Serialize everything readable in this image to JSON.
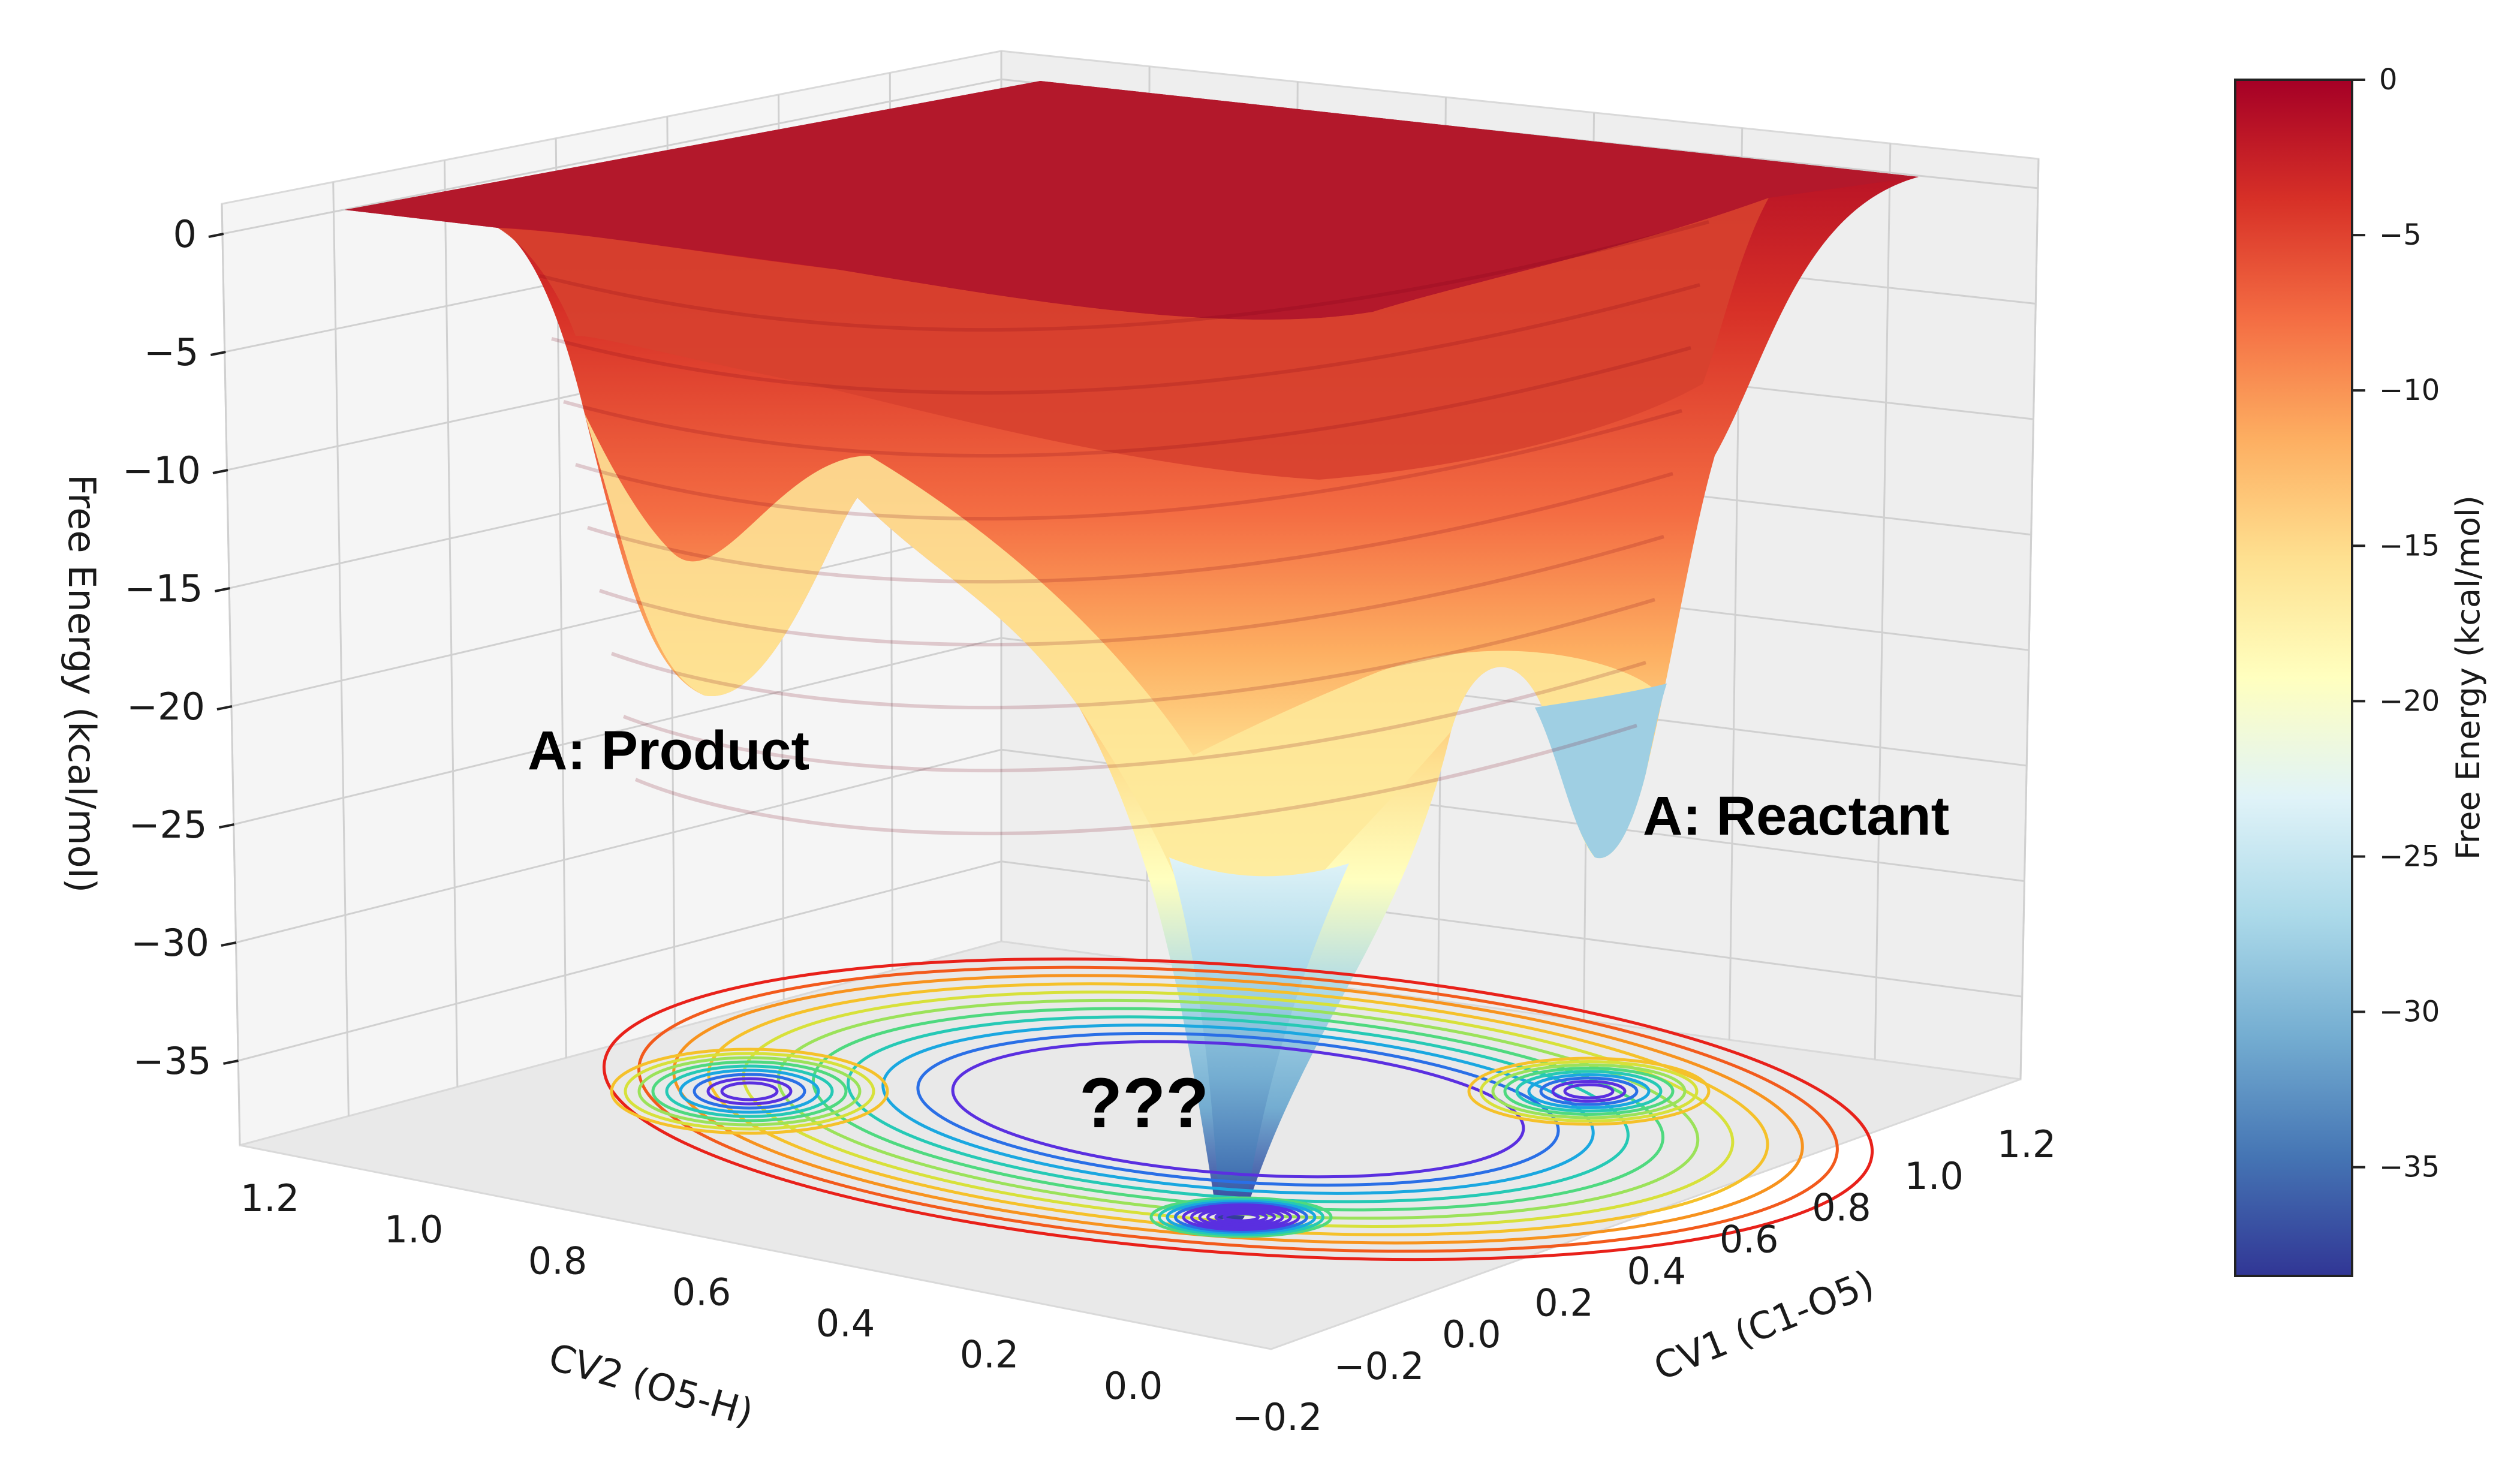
{
  "chart_data": [
    {
      "type": "surface",
      "title": "",
      "axes": {
        "x": {
          "label": "CV1 (C1-O5)",
          "range": [
            -0.2,
            1.2
          ],
          "ticks": [
            "−0.2",
            "0.0",
            "0.2",
            "0.4",
            "0.6",
            "0.8",
            "1.0",
            "1.2"
          ]
        },
        "y": {
          "label": "CV2 (O5-H)",
          "range": [
            -0.2,
            1.2
          ],
          "ticks": [
            "1.2",
            "1.0",
            "0.8",
            "0.6",
            "0.4",
            "0.2",
            "0.0",
            "−0.2"
          ]
        },
        "z": {
          "label": "Free Energy (kcal/mol)",
          "range": [
            -38,
            0
          ],
          "ticks": [
            "0",
            "−5",
            "−10",
            "−15",
            "−20",
            "−25",
            "−30",
            "−35"
          ]
        }
      },
      "grid": true,
      "surface_minima": [
        {
          "name": "A: Product",
          "cv1": 0.0,
          "cv2": 0.9,
          "energy": -20
        },
        {
          "name": "A: Reactant",
          "cv1": 0.9,
          "cv2": 0.05,
          "energy": -27
        },
        {
          "name": "???",
          "cv1": 0.1,
          "cv2": 0.1,
          "energy": -38
        }
      ],
      "annotations": [
        "A: Product",
        "A: Reactant",
        "???"
      ]
    },
    {
      "type": "colorbar",
      "label": "Free Energy (kcal/mol)",
      "range": [
        -38.5,
        0
      ],
      "ticks": [
        "0",
        "−5",
        "−10",
        "−15",
        "−20",
        "−25",
        "−30",
        "−35"
      ],
      "tick_values": [
        0,
        -5,
        -10,
        -15,
        -20,
        -25,
        -30,
        -35
      ],
      "colormap": "RdYlBu_r",
      "colors": [
        "#313695",
        "#4575b4",
        "#74add1",
        "#abd9e9",
        "#e0f3f8",
        "#ffffbf",
        "#fee090",
        "#fdae61",
        "#f46d43",
        "#d73027",
        "#a50026"
      ]
    }
  ]
}
